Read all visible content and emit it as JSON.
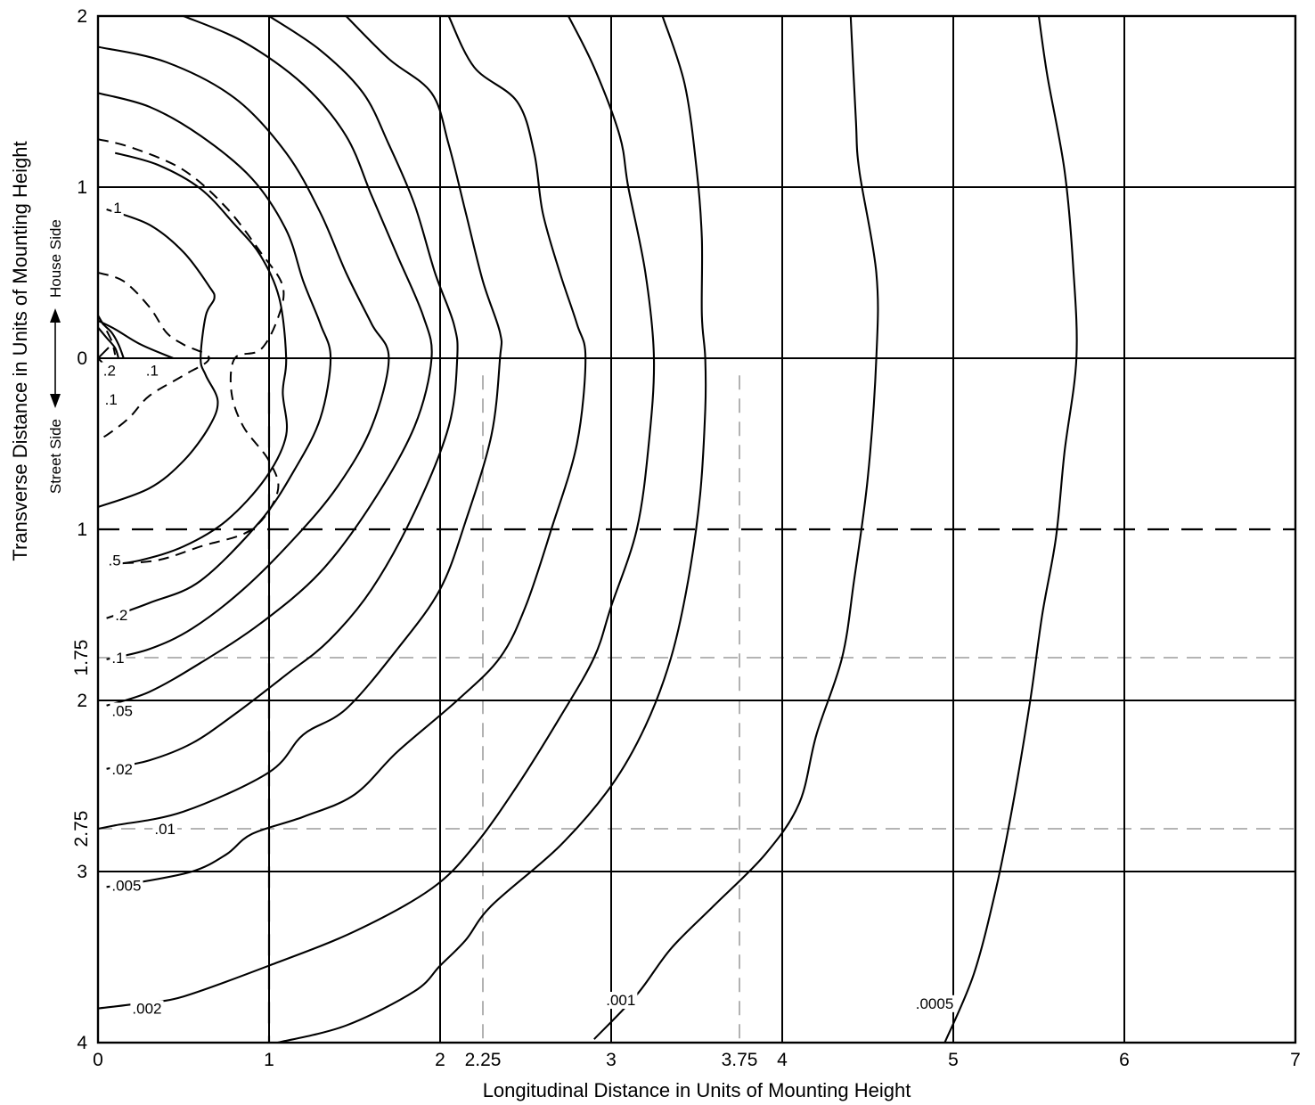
{
  "chart_data": {
    "type": "contour",
    "xlabel": "Longitudinal Distance in Units of Mounting Height",
    "ylabel": "Transverse Distance in Units of Mounting Height",
    "side_labels": {
      "house": "House Side",
      "street": "Street Side"
    },
    "xlim": [
      0,
      7
    ],
    "ylim": [
      -2,
      4
    ],
    "x_ticks": [
      {
        "value": 0,
        "label": "0"
      },
      {
        "value": 1,
        "label": "1"
      },
      {
        "value": 2,
        "label": "2"
      },
      {
        "value": 2.25,
        "label": "2.25"
      },
      {
        "value": 3,
        "label": "3"
      },
      {
        "value": 3.75,
        "label": "3.75"
      },
      {
        "value": 4,
        "label": "4"
      },
      {
        "value": 5,
        "label": "5"
      },
      {
        "value": 6,
        "label": "6"
      },
      {
        "value": 7,
        "label": "7"
      }
    ],
    "y_ticks": [
      {
        "value": -2,
        "label": "2",
        "rotated": false
      },
      {
        "value": -1,
        "label": "1",
        "rotated": false
      },
      {
        "value": 0,
        "label": "0",
        "rotated": false
      },
      {
        "value": 1,
        "label": "1",
        "rotated": false
      },
      {
        "value": 1.75,
        "label": "1.75",
        "rotated": true
      },
      {
        "value": 2,
        "label": "2",
        "rotated": false
      },
      {
        "value": 2.75,
        "label": "2.75",
        "rotated": true
      },
      {
        "value": 3,
        "label": "3",
        "rotated": false
      },
      {
        "value": 4,
        "label": "4",
        "rotated": false
      }
    ],
    "grid": {
      "solid_x": [
        1,
        2,
        3,
        4,
        5,
        6
      ],
      "solid_y": [
        -1,
        0,
        2,
        3
      ],
      "dashed_heavy_y": [
        1
      ],
      "dashed_heavy_x": {
        "x": 1,
        "y_from": 0.2,
        "y_to": 4
      },
      "dashed_light_y": [
        1.75,
        2.75
      ],
      "dashed_light_x": [
        {
          "x": 2.25,
          "y_from": 0.1,
          "y_to": 4
        },
        {
          "x": 3.75,
          "y_from": 0.1,
          "y_to": 4
        }
      ]
    },
    "contours": [
      {
        "value": "2",
        "label": ".2",
        "points": [
          [
            0,
            -0.25
          ],
          [
            0.03,
            -0.2
          ],
          [
            0.08,
            -0.15
          ],
          [
            0.12,
            -0.08
          ],
          [
            0.15,
            0
          ]
        ]
      },
      {
        "value": "2b",
        "label": "",
        "points": [
          [
            0,
            -0.18
          ],
          [
            0.05,
            -0.12
          ],
          [
            0.1,
            -0.06
          ],
          [
            0.12,
            0
          ]
        ]
      },
      {
        "value": "1inner",
        "label": "",
        "points": [
          [
            0,
            -0.22
          ],
          [
            0.1,
            -0.17
          ],
          [
            0.25,
            -0.08
          ],
          [
            0.44,
            0
          ]
        ]
      },
      {
        "value": "1",
        "label": "1",
        "points": [
          [
            0.05,
            -0.87
          ],
          [
            0.3,
            -0.78
          ],
          [
            0.5,
            -0.62
          ],
          [
            0.65,
            -0.42
          ],
          [
            0.68,
            -0.35
          ],
          [
            0.63,
            -0.25
          ],
          [
            0.6,
            0
          ],
          [
            0.63,
            0.1
          ],
          [
            0.7,
            0.25
          ],
          [
            0.65,
            0.4
          ],
          [
            0.5,
            0.6
          ],
          [
            0.3,
            0.76
          ],
          [
            0,
            0.87
          ]
        ]
      },
      {
        "value": "p5",
        "label": ".5",
        "points": [
          [
            0.1,
            -1.2
          ],
          [
            0.35,
            -1.13
          ],
          [
            0.6,
            -0.99
          ],
          [
            0.8,
            -0.78
          ],
          [
            0.95,
            -0.6
          ],
          [
            1.06,
            -0.35
          ],
          [
            1.1,
            0
          ],
          [
            1.08,
            0.2
          ],
          [
            1.1,
            0.45
          ],
          [
            0.98,
            0.7
          ],
          [
            0.75,
            0.95
          ],
          [
            0.5,
            1.1
          ],
          [
            0.25,
            1.18
          ],
          [
            0.05,
            1.21
          ]
        ]
      },
      {
        "value": "p2",
        "label": ".2",
        "points": [
          [
            0,
            -1.55
          ],
          [
            0.3,
            -1.47
          ],
          [
            0.6,
            -1.3
          ],
          [
            0.9,
            -1.05
          ],
          [
            1.1,
            -0.75
          ],
          [
            1.2,
            -0.45
          ],
          [
            1.3,
            -0.2
          ],
          [
            1.36,
            0
          ],
          [
            1.3,
            0.35
          ],
          [
            1.15,
            0.65
          ],
          [
            0.95,
            0.95
          ],
          [
            0.6,
            1.3
          ],
          [
            0.3,
            1.43
          ],
          [
            0.05,
            1.52
          ]
        ]
      },
      {
        "value": "p1",
        "label": ".1",
        "points": [
          [
            0,
            -1.82
          ],
          [
            0.4,
            -1.73
          ],
          [
            0.8,
            -1.52
          ],
          [
            1.1,
            -1.2
          ],
          [
            1.3,
            -0.85
          ],
          [
            1.45,
            -0.5
          ],
          [
            1.6,
            -0.2
          ],
          [
            1.7,
            0
          ],
          [
            1.6,
            0.4
          ],
          [
            1.4,
            0.75
          ],
          [
            1.15,
            1.05
          ],
          [
            0.85,
            1.35
          ],
          [
            0.55,
            1.58
          ],
          [
            0.3,
            1.7
          ],
          [
            0.05,
            1.76
          ]
        ]
      },
      {
        "value": "p05",
        "label": ".05",
        "points": [
          [
            0.5,
            -2
          ],
          [
            0.85,
            -1.85
          ],
          [
            1.2,
            -1.6
          ],
          [
            1.45,
            -1.3
          ],
          [
            1.6,
            -0.95
          ],
          [
            1.75,
            -0.6
          ],
          [
            1.9,
            -0.25
          ],
          [
            1.95,
            0
          ],
          [
            1.85,
            0.4
          ],
          [
            1.6,
            0.85
          ],
          [
            1.3,
            1.25
          ],
          [
            0.95,
            1.55
          ],
          [
            0.6,
            1.78
          ],
          [
            0.3,
            1.95
          ],
          [
            0.05,
            2.03
          ]
        ]
      },
      {
        "value": "p02",
        "label": ".02",
        "points": [
          [
            1.0,
            -2
          ],
          [
            1.3,
            -1.8
          ],
          [
            1.55,
            -1.55
          ],
          [
            1.7,
            -1.25
          ],
          [
            1.85,
            -0.9
          ],
          [
            1.97,
            -0.5
          ],
          [
            2.08,
            -0.2
          ],
          [
            2.1,
            0
          ],
          [
            2.05,
            0.4
          ],
          [
            1.85,
            0.9
          ],
          [
            1.6,
            1.35
          ],
          [
            1.35,
            1.65
          ],
          [
            1.1,
            1.85
          ],
          [
            0.8,
            2.08
          ],
          [
            0.55,
            2.25
          ],
          [
            0.3,
            2.35
          ],
          [
            0.05,
            2.4
          ]
        ]
      },
      {
        "value": "p01",
        "label": ".01",
        "points": [
          [
            1.45,
            -2
          ],
          [
            1.7,
            -1.75
          ],
          [
            1.95,
            -1.55
          ],
          [
            2.05,
            -1.25
          ],
          [
            2.15,
            -0.85
          ],
          [
            2.25,
            -0.45
          ],
          [
            2.35,
            -0.15
          ],
          [
            2.35,
            0
          ],
          [
            2.3,
            0.45
          ],
          [
            2.15,
            0.95
          ],
          [
            2.0,
            1.35
          ],
          [
            1.75,
            1.7
          ],
          [
            1.45,
            2.05
          ],
          [
            1.2,
            2.2
          ],
          [
            1.0,
            2.42
          ],
          [
            0.5,
            2.65
          ],
          [
            0.1,
            2.73
          ],
          [
            0,
            2.75
          ]
        ]
      },
      {
        "value": "p005",
        "label": ".005",
        "points": [
          [
            2.05,
            -2
          ],
          [
            2.2,
            -1.7
          ],
          [
            2.45,
            -1.5
          ],
          [
            2.55,
            -1.2
          ],
          [
            2.6,
            -0.85
          ],
          [
            2.7,
            -0.5
          ],
          [
            2.8,
            -0.2
          ],
          [
            2.85,
            0
          ],
          [
            2.8,
            0.5
          ],
          [
            2.65,
            1.0
          ],
          [
            2.5,
            1.45
          ],
          [
            2.35,
            1.75
          ],
          [
            2.1,
            2.0
          ],
          [
            1.75,
            2.3
          ],
          [
            1.5,
            2.55
          ],
          [
            1.2,
            2.68
          ],
          [
            0.9,
            2.78
          ],
          [
            0.75,
            2.9
          ],
          [
            0.55,
            3.0
          ],
          [
            0.2,
            3.07
          ],
          [
            0.05,
            3.09
          ]
        ]
      },
      {
        "value": "p002",
        "label": ".002",
        "points": [
          [
            2.75,
            -2
          ],
          [
            2.9,
            -1.7
          ],
          [
            3.05,
            -1.3
          ],
          [
            3.1,
            -1.0
          ],
          [
            3.2,
            -0.5
          ],
          [
            3.25,
            0
          ],
          [
            3.22,
            0.5
          ],
          [
            3.15,
            1.0
          ],
          [
            3.0,
            1.45
          ],
          [
            2.9,
            1.75
          ],
          [
            2.7,
            2.1
          ],
          [
            2.45,
            2.5
          ],
          [
            2.2,
            2.85
          ],
          [
            1.95,
            3.1
          ],
          [
            1.5,
            3.35
          ],
          [
            1.0,
            3.55
          ],
          [
            0.5,
            3.73
          ],
          [
            0.25,
            3.77
          ],
          [
            0,
            3.8
          ]
        ]
      },
      {
        "value": "p001",
        "label": ".001",
        "points": [
          [
            3.3,
            -2
          ],
          [
            3.43,
            -1.6
          ],
          [
            3.5,
            -1.1
          ],
          [
            3.53,
            -0.7
          ],
          [
            3.53,
            -0.25
          ],
          [
            3.55,
            0
          ],
          [
            3.55,
            0.3
          ],
          [
            3.52,
            0.8
          ],
          [
            3.45,
            1.3
          ],
          [
            3.35,
            1.75
          ],
          [
            3.2,
            2.15
          ],
          [
            3.0,
            2.5
          ],
          [
            2.7,
            2.85
          ],
          [
            2.3,
            3.2
          ],
          [
            2.15,
            3.4
          ],
          [
            2.0,
            3.55
          ],
          [
            1.85,
            3.7
          ],
          [
            1.45,
            3.9
          ],
          [
            1.05,
            4.0
          ]
        ]
      },
      {
        "value": "p0005",
        "label": ".0005",
        "points": [
          [
            4.4,
            -2
          ],
          [
            4.43,
            -1.4
          ],
          [
            4.45,
            -1.1
          ],
          [
            4.55,
            -0.5
          ],
          [
            4.55,
            0
          ],
          [
            4.5,
            0.7
          ],
          [
            4.42,
            1.3
          ],
          [
            4.35,
            1.75
          ],
          [
            4.2,
            2.2
          ],
          [
            4.1,
            2.6
          ],
          [
            3.9,
            2.9
          ],
          [
            3.6,
            3.2
          ],
          [
            3.35,
            3.45
          ],
          [
            3.15,
            3.72
          ],
          [
            2.9,
            3.98
          ]
        ]
      },
      {
        "value": "p0002",
        "label": "",
        "points": [
          [
            5.5,
            -2
          ],
          [
            5.55,
            -1.65
          ],
          [
            5.65,
            -1.1
          ],
          [
            5.7,
            -0.55
          ],
          [
            5.72,
            0
          ],
          [
            5.65,
            0.55
          ],
          [
            5.6,
            1.05
          ],
          [
            5.52,
            1.5
          ],
          [
            5.45,
            2.0
          ],
          [
            5.35,
            2.6
          ],
          [
            5.25,
            3.1
          ],
          [
            5.12,
            3.6
          ],
          [
            4.95,
            4.0
          ]
        ]
      }
    ],
    "dashed_contours": [
      {
        "value": "d1",
        "points": [
          [
            0,
            -1.28
          ],
          [
            0.2,
            -1.23
          ],
          [
            0.5,
            -1.1
          ],
          [
            0.75,
            -0.88
          ],
          [
            0.95,
            -0.62
          ],
          [
            1.08,
            -0.42
          ],
          [
            1.05,
            -0.23
          ],
          [
            0.95,
            -0.05
          ],
          [
            0.8,
            0
          ],
          [
            0.78,
            0.2
          ],
          [
            0.85,
            0.4
          ],
          [
            1.0,
            0.6
          ],
          [
            1.05,
            0.78
          ],
          [
            0.9,
            1.0
          ],
          [
            0.6,
            1.1
          ],
          [
            0.35,
            1.18
          ],
          [
            0.1,
            1.2
          ]
        ]
      },
      {
        "value": "d2",
        "points": [
          [
            0,
            -0.5
          ],
          [
            0.15,
            -0.45
          ],
          [
            0.3,
            -0.3
          ],
          [
            0.4,
            -0.15
          ],
          [
            0.5,
            -0.08
          ],
          [
            0.65,
            0
          ],
          [
            0.5,
            0.1
          ],
          [
            0.3,
            0.22
          ],
          [
            0.18,
            0.35
          ],
          [
            0.05,
            0.45
          ],
          [
            0,
            0.47
          ]
        ]
      },
      {
        "value": "d3",
        "points": [
          [
            0,
            -0.25
          ],
          [
            0.04,
            -0.18
          ],
          [
            0.08,
            -0.1
          ],
          [
            0.1,
            -0.02
          ]
        ]
      }
    ],
    "contour_labels": [
      {
        "text": "1",
        "x": 0.09,
        "y": -0.88
      },
      {
        "text": ".2",
        "x": 0.03,
        "y": 0.07
      },
      {
        "text": ".1",
        "x": 0.28,
        "y": 0.07
      },
      {
        "text": ".1",
        "x": 0.04,
        "y": 0.24
      },
      {
        "text": ".5",
        "x": 0.06,
        "y": 1.18
      },
      {
        "text": ".2",
        "x": 0.1,
        "y": 1.5
      },
      {
        "text": ".1",
        "x": 0.08,
        "y": 1.75
      },
      {
        "text": ".05",
        "x": 0.08,
        "y": 2.06
      },
      {
        "text": ".02",
        "x": 0.08,
        "y": 2.4
      },
      {
        "text": ".01",
        "x": 0.33,
        "y": 2.75
      },
      {
        "text": ".005",
        "x": 0.08,
        "y": 3.08
      },
      {
        "text": ".002",
        "x": 0.2,
        "y": 3.8
      },
      {
        "text": ".001",
        "x": 2.97,
        "y": 3.75
      },
      {
        "text": ".0005",
        "x": 4.78,
        "y": 3.77
      }
    ],
    "luminaire_marker": {
      "x": 0,
      "y": 0,
      "symbol": "×"
    }
  }
}
